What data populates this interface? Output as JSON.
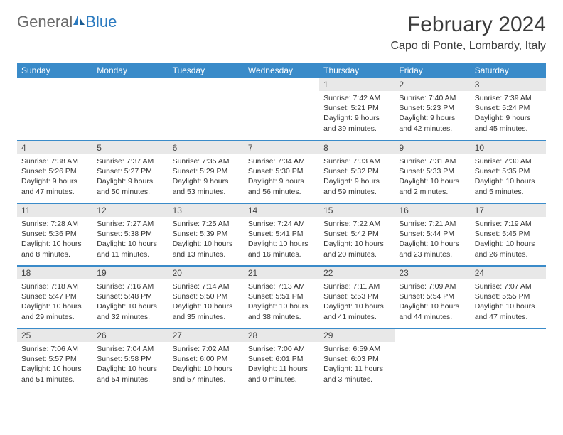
{
  "logo": {
    "part1": "General",
    "part2": "Blue"
  },
  "title": "February 2024",
  "location": "Capo di Ponte, Lombardy, Italy",
  "colors": {
    "header_bg": "#3a8bc9",
    "header_text": "#ffffff",
    "daynum_bg": "#e8e8e8",
    "border": "#3a8bc9",
    "logo_gray": "#6b6b6b",
    "logo_blue": "#2c7bc0"
  },
  "weekdays": [
    "Sunday",
    "Monday",
    "Tuesday",
    "Wednesday",
    "Thursday",
    "Friday",
    "Saturday"
  ],
  "weeks": [
    [
      null,
      null,
      null,
      null,
      {
        "n": "1",
        "sr": "Sunrise: 7:42 AM",
        "ss": "Sunset: 5:21 PM",
        "dl": "Daylight: 9 hours and 39 minutes."
      },
      {
        "n": "2",
        "sr": "Sunrise: 7:40 AM",
        "ss": "Sunset: 5:23 PM",
        "dl": "Daylight: 9 hours and 42 minutes."
      },
      {
        "n": "3",
        "sr": "Sunrise: 7:39 AM",
        "ss": "Sunset: 5:24 PM",
        "dl": "Daylight: 9 hours and 45 minutes."
      }
    ],
    [
      {
        "n": "4",
        "sr": "Sunrise: 7:38 AM",
        "ss": "Sunset: 5:26 PM",
        "dl": "Daylight: 9 hours and 47 minutes."
      },
      {
        "n": "5",
        "sr": "Sunrise: 7:37 AM",
        "ss": "Sunset: 5:27 PM",
        "dl": "Daylight: 9 hours and 50 minutes."
      },
      {
        "n": "6",
        "sr": "Sunrise: 7:35 AM",
        "ss": "Sunset: 5:29 PM",
        "dl": "Daylight: 9 hours and 53 minutes."
      },
      {
        "n": "7",
        "sr": "Sunrise: 7:34 AM",
        "ss": "Sunset: 5:30 PM",
        "dl": "Daylight: 9 hours and 56 minutes."
      },
      {
        "n": "8",
        "sr": "Sunrise: 7:33 AM",
        "ss": "Sunset: 5:32 PM",
        "dl": "Daylight: 9 hours and 59 minutes."
      },
      {
        "n": "9",
        "sr": "Sunrise: 7:31 AM",
        "ss": "Sunset: 5:33 PM",
        "dl": "Daylight: 10 hours and 2 minutes."
      },
      {
        "n": "10",
        "sr": "Sunrise: 7:30 AM",
        "ss": "Sunset: 5:35 PM",
        "dl": "Daylight: 10 hours and 5 minutes."
      }
    ],
    [
      {
        "n": "11",
        "sr": "Sunrise: 7:28 AM",
        "ss": "Sunset: 5:36 PM",
        "dl": "Daylight: 10 hours and 8 minutes."
      },
      {
        "n": "12",
        "sr": "Sunrise: 7:27 AM",
        "ss": "Sunset: 5:38 PM",
        "dl": "Daylight: 10 hours and 11 minutes."
      },
      {
        "n": "13",
        "sr": "Sunrise: 7:25 AM",
        "ss": "Sunset: 5:39 PM",
        "dl": "Daylight: 10 hours and 13 minutes."
      },
      {
        "n": "14",
        "sr": "Sunrise: 7:24 AM",
        "ss": "Sunset: 5:41 PM",
        "dl": "Daylight: 10 hours and 16 minutes."
      },
      {
        "n": "15",
        "sr": "Sunrise: 7:22 AM",
        "ss": "Sunset: 5:42 PM",
        "dl": "Daylight: 10 hours and 20 minutes."
      },
      {
        "n": "16",
        "sr": "Sunrise: 7:21 AM",
        "ss": "Sunset: 5:44 PM",
        "dl": "Daylight: 10 hours and 23 minutes."
      },
      {
        "n": "17",
        "sr": "Sunrise: 7:19 AM",
        "ss": "Sunset: 5:45 PM",
        "dl": "Daylight: 10 hours and 26 minutes."
      }
    ],
    [
      {
        "n": "18",
        "sr": "Sunrise: 7:18 AM",
        "ss": "Sunset: 5:47 PM",
        "dl": "Daylight: 10 hours and 29 minutes."
      },
      {
        "n": "19",
        "sr": "Sunrise: 7:16 AM",
        "ss": "Sunset: 5:48 PM",
        "dl": "Daylight: 10 hours and 32 minutes."
      },
      {
        "n": "20",
        "sr": "Sunrise: 7:14 AM",
        "ss": "Sunset: 5:50 PM",
        "dl": "Daylight: 10 hours and 35 minutes."
      },
      {
        "n": "21",
        "sr": "Sunrise: 7:13 AM",
        "ss": "Sunset: 5:51 PM",
        "dl": "Daylight: 10 hours and 38 minutes."
      },
      {
        "n": "22",
        "sr": "Sunrise: 7:11 AM",
        "ss": "Sunset: 5:53 PM",
        "dl": "Daylight: 10 hours and 41 minutes."
      },
      {
        "n": "23",
        "sr": "Sunrise: 7:09 AM",
        "ss": "Sunset: 5:54 PM",
        "dl": "Daylight: 10 hours and 44 minutes."
      },
      {
        "n": "24",
        "sr": "Sunrise: 7:07 AM",
        "ss": "Sunset: 5:55 PM",
        "dl": "Daylight: 10 hours and 47 minutes."
      }
    ],
    [
      {
        "n": "25",
        "sr": "Sunrise: 7:06 AM",
        "ss": "Sunset: 5:57 PM",
        "dl": "Daylight: 10 hours and 51 minutes."
      },
      {
        "n": "26",
        "sr": "Sunrise: 7:04 AM",
        "ss": "Sunset: 5:58 PM",
        "dl": "Daylight: 10 hours and 54 minutes."
      },
      {
        "n": "27",
        "sr": "Sunrise: 7:02 AM",
        "ss": "Sunset: 6:00 PM",
        "dl": "Daylight: 10 hours and 57 minutes."
      },
      {
        "n": "28",
        "sr": "Sunrise: 7:00 AM",
        "ss": "Sunset: 6:01 PM",
        "dl": "Daylight: 11 hours and 0 minutes."
      },
      {
        "n": "29",
        "sr": "Sunrise: 6:59 AM",
        "ss": "Sunset: 6:03 PM",
        "dl": "Daylight: 11 hours and 3 minutes."
      },
      null,
      null
    ]
  ]
}
